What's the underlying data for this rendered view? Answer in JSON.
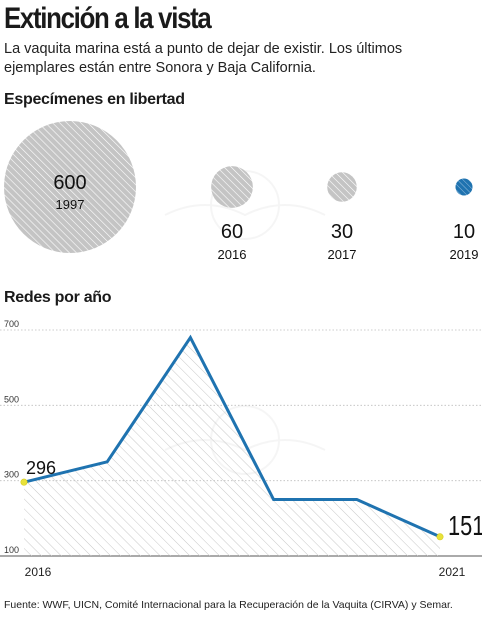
{
  "header": {
    "title": "Extinción a la vista",
    "subtitle": "La vaquita marina está a punto de dejar de existir. Los últimos ejemplares están entre Sonora y Baja California."
  },
  "sections": {
    "specimens_title": "Especímenes en libertad",
    "nets_title": "Redes por año"
  },
  "source": "Fuente: WWF, UICN, Comité Internacional para la Recuperación de la Vaquita (CIRVA) y Semar.",
  "colors": {
    "accent": "#1f73b0",
    "bubble_gray": "#c9c9c9",
    "point_marker": "#e8e23a"
  },
  "chart_data": [
    {
      "type": "bubble",
      "title": "Especímenes en libertad",
      "categories": [
        "1997",
        "2016",
        "2017",
        "2019"
      ],
      "values": [
        600,
        60,
        30,
        10
      ],
      "labels": [
        "600",
        "60",
        "30",
        "10"
      ]
    },
    {
      "type": "area",
      "title": "Redes por año",
      "x": [
        2016,
        2017,
        2018,
        2019,
        2020,
        2021
      ],
      "values": [
        296,
        350,
        680,
        250,
        250,
        151
      ],
      "ylim": [
        100,
        700
      ],
      "yticks": [
        "100",
        "300",
        "500",
        "700"
      ],
      "xtick_labels": [
        "2016",
        "2021"
      ],
      "point_labels": [
        {
          "index": 0,
          "text": "296"
        },
        {
          "index": 5,
          "text": "151"
        }
      ],
      "grid": true
    }
  ]
}
